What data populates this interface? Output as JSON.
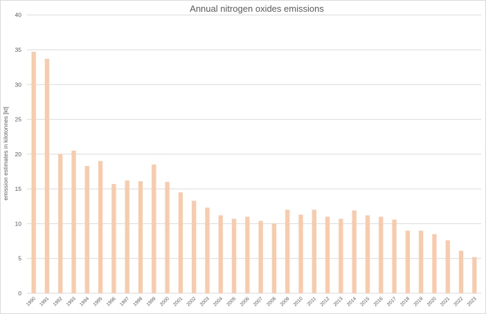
{
  "chart_data": {
    "type": "bar",
    "title": "Annual nitrogen oxides emissions",
    "xlabel": "",
    "ylabel": "emission estimates in kilotonnes [kt]",
    "ylim": [
      0,
      40
    ],
    "yticks": [
      0,
      5,
      10,
      15,
      20,
      25,
      30,
      35,
      40
    ],
    "grid": true,
    "legend": "none",
    "bar_color": "#f8cbad",
    "categories": [
      "1990",
      "1991",
      "1992",
      "1993",
      "1994",
      "1995",
      "1996",
      "1997",
      "1998",
      "1999",
      "2000",
      "2001",
      "2002",
      "2003",
      "2004",
      "2005",
      "2006",
      "2007",
      "2008",
      "2009",
      "2010",
      "2011",
      "2012",
      "2013",
      "2014",
      "2015",
      "2016",
      "2017",
      "2018",
      "2019",
      "2020",
      "2021",
      "2022",
      "2023"
    ],
    "values": [
      34.7,
      33.7,
      20.0,
      20.5,
      18.3,
      19.0,
      15.7,
      16.2,
      16.1,
      18.5,
      16.0,
      14.5,
      13.3,
      12.3,
      11.2,
      10.7,
      11.0,
      10.4,
      10.0,
      12.0,
      11.3,
      12.0,
      11.0,
      10.7,
      11.9,
      11.2,
      11.0,
      10.6,
      9.0,
      9.0,
      8.5,
      7.6,
      6.1,
      5.2
    ]
  }
}
